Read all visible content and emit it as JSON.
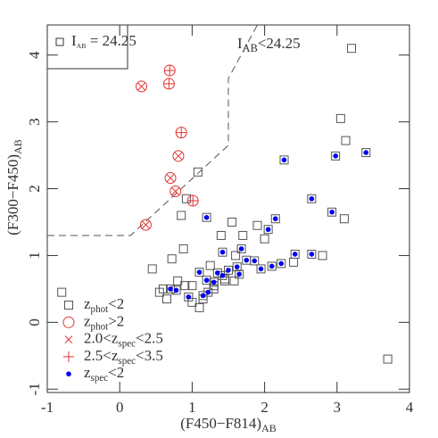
{
  "chart_data": {
    "type": "scatter",
    "x_label": {
      "text": "(F450−F814)",
      "sub": "AB"
    },
    "y_label": {
      "text": "(F300−F450)",
      "sub": "AB"
    },
    "xlim": [
      -1,
      4
    ],
    "ylim": [
      -1.05,
      4.45
    ],
    "xticks": [
      -1,
      0,
      1,
      2,
      3,
      4
    ],
    "yticks": [
      -1,
      0,
      1,
      2,
      3,
      4
    ],
    "annotation": {
      "parts": [
        "I",
        "AB",
        "<24.25"
      ]
    },
    "inset": {
      "parts": [
        "I",
        "AB",
        " = 24.25"
      ]
    },
    "boundary": {
      "x": [
        -1,
        0.15,
        1.5,
        1.5,
        1.9
      ],
      "y": [
        1.3,
        1.3,
        2.65,
        3.65,
        4.45
      ]
    },
    "series": [
      {
        "name_parts": [
          "z",
          "phot",
          "<2"
        ],
        "marker": "square",
        "color": "#555555",
        "label_color": "#333333",
        "x": [
          3.2,
          3.05,
          3.12,
          3.1,
          3.7,
          -0.8,
          2.27,
          2.98,
          3.4,
          2.65,
          2.93,
          1.2,
          2.15,
          2.05,
          1.68,
          1.42,
          2.65,
          2.42,
          1.75,
          1.86,
          2.23,
          2.1,
          1.95,
          1.62,
          1.5,
          1.65,
          1.1,
          1.35,
          1.42,
          1.3,
          1.2,
          0.95,
          0.78,
          1.15,
          1.22,
          0.7,
          1.08,
          0.85,
          0.92,
          1.55,
          1.58,
          1.3,
          1.0,
          0.6,
          0.45,
          0.72,
          0.8,
          1.4,
          1.6,
          1.9,
          2.0,
          2.4,
          1.45,
          1.25,
          1.0,
          0.65,
          0.9,
          1.1,
          1.7,
          2.8,
          0.88,
          0.55,
          1.15,
          1.3,
          1.45
        ],
        "y": [
          4.1,
          3.05,
          2.72,
          1.55,
          -0.55,
          0.45,
          2.43,
          2.49,
          2.54,
          1.85,
          1.65,
          1.57,
          1.55,
          1.39,
          1.1,
          1.05,
          1.02,
          1.02,
          0.93,
          0.92,
          0.88,
          0.84,
          0.8,
          0.83,
          0.78,
          0.72,
          0.75,
          0.74,
          0.7,
          0.6,
          0.63,
          0.38,
          0.48,
          0.4,
          0.45,
          0.5,
          2.25,
          1.6,
          1.85,
          1.5,
          0.62,
          0.55,
          0.55,
          0.5,
          0.8,
          0.95,
          0.62,
          1.3,
          1.0,
          1.45,
          1.25,
          0.9,
          0.62,
          0.85,
          0.3,
          0.35,
          0.55,
          0.22,
          1.3,
          1.0,
          1.1,
          0.45,
          0.35,
          0.5,
          0.65
        ]
      },
      {
        "name_parts": [
          "z",
          "phot",
          ">2"
        ],
        "marker": "circle",
        "color": "#e53030",
        "label_color": "#333333",
        "x": [
          0.3,
          0.81,
          0.7,
          0.77,
          0.36,
          0.69,
          0.68,
          0.85,
          1.01
        ],
        "y": [
          3.53,
          2.49,
          2.16,
          1.96,
          1.46,
          3.77,
          3.57,
          2.84,
          1.82
        ]
      },
      {
        "name_parts": [
          "2.0<z",
          "spec",
          "<2.5"
        ],
        "marker": "cross",
        "color": "#e53030",
        "label_color": "#e53030",
        "x": [
          0.3,
          0.81,
          0.7,
          0.77,
          0.36
        ],
        "y": [
          3.53,
          2.49,
          2.16,
          1.96,
          1.46
        ]
      },
      {
        "name_parts": [
          "2.5<z",
          "spec",
          "<3.5"
        ],
        "marker": "plus",
        "color": "#e53030",
        "label_color": "#e53030",
        "x": [
          0.69,
          0.68,
          0.85,
          1.01
        ],
        "y": [
          3.77,
          3.57,
          2.84,
          1.82
        ]
      },
      {
        "name_parts": [
          "z",
          "spec",
          "<2"
        ],
        "marker": "dot",
        "color": "#0000ee",
        "label_color": "#2a2aee",
        "x": [
          2.27,
          2.98,
          3.4,
          2.65,
          2.93,
          1.2,
          2.15,
          2.05,
          1.68,
          1.42,
          2.65,
          2.42,
          1.75,
          1.86,
          2.23,
          2.1,
          1.95,
          1.62,
          1.5,
          1.65,
          1.1,
          1.35,
          1.42,
          1.3,
          1.2,
          0.95,
          0.78,
          1.15,
          1.22,
          0.7
        ],
        "y": [
          2.43,
          2.49,
          2.54,
          1.85,
          1.65,
          1.57,
          1.55,
          1.39,
          1.1,
          1.05,
          1.02,
          1.02,
          0.93,
          0.92,
          0.88,
          0.84,
          0.8,
          0.83,
          0.78,
          0.72,
          0.75,
          0.74,
          0.7,
          0.6,
          0.63,
          0.38,
          0.48,
          0.4,
          0.45,
          0.5
        ]
      }
    ]
  }
}
